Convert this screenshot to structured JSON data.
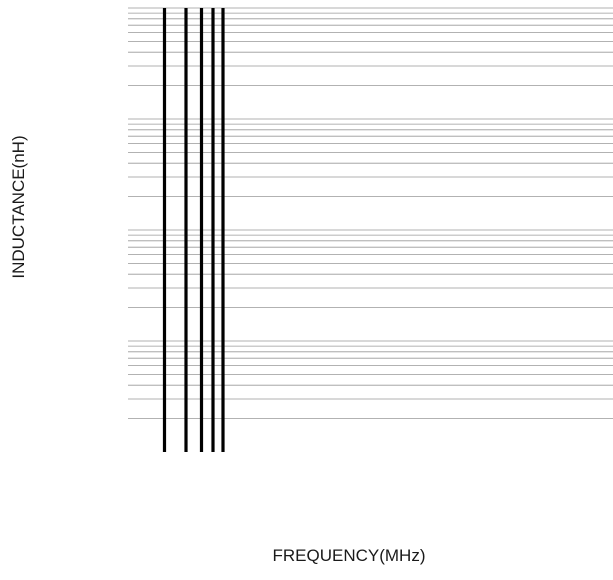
{
  "chart_data": {
    "type": "line",
    "title": "",
    "xlabel": "FREQUENCY(MHz)",
    "ylabel": "INDUCTANCE(nH)",
    "yscale": "log",
    "y_decades": 4,
    "xscale": "log",
    "x_decade_lines": 5,
    "grid": true,
    "grid_color": "#999999",
    "axis_line_color": "#000000",
    "series": []
  }
}
